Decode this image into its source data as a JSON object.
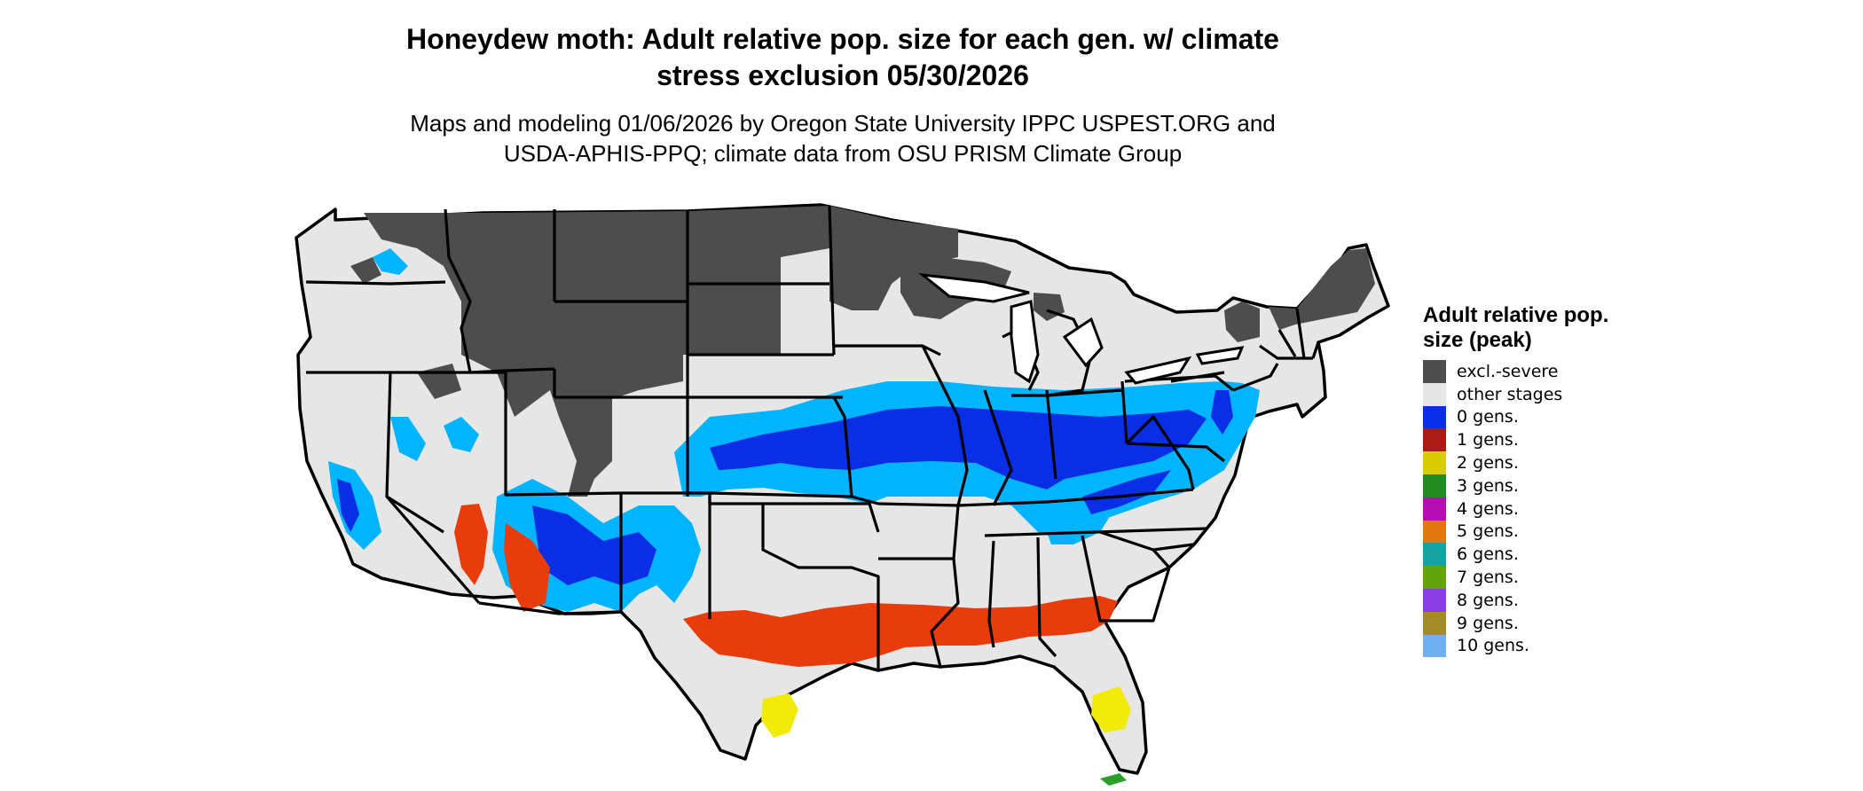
{
  "title_line1": "Honeydew moth: Adult relative pop. size for each gen. w/ climate",
  "title_line2": "stress exclusion 05/30/2026",
  "subtitle_line1": "Maps and modeling 01/06/2026 by Oregon State University IPPC USPEST.ORG and",
  "subtitle_line2": "USDA-APHIS-PPQ; climate data from OSU PRISM Climate Group",
  "legend": {
    "title": "Adult relative pop. size (peak)",
    "items": [
      {
        "label": "excl.-severe",
        "color": "#4d4d4d"
      },
      {
        "label": "other stages",
        "color": "#e6e6e6"
      },
      {
        "label": "0 gens.",
        "color": "#0a2ee6"
      },
      {
        "label": "1 gens.",
        "color": "#a81c14"
      },
      {
        "label": "2 gens.",
        "color": "#d9cc00"
      },
      {
        "label": "3 gens.",
        "color": "#228b22"
      },
      {
        "label": "4 gens.",
        "color": "#b30fb3"
      },
      {
        "label": "5 gens.",
        "color": "#e0780f"
      },
      {
        "label": "6 gens.",
        "color": "#14a3a3"
      },
      {
        "label": "7 gens.",
        "color": "#64a30f"
      },
      {
        "label": "8 gens.",
        "color": "#8a3de0"
      },
      {
        "label": "9 gens.",
        "color": "#a38c28"
      },
      {
        "label": "10 gens.",
        "color": "#70b0f0"
      }
    ]
  },
  "map_colors": {
    "land": "#e6e6e6",
    "excluded": "#4d4d4d",
    "light_blue": "#00b4ff",
    "dark_blue": "#0a2ee6",
    "red_orange": "#e83c0c",
    "yellow": "#f2ea0a",
    "green": "#2aa02a",
    "border": "#000000"
  }
}
